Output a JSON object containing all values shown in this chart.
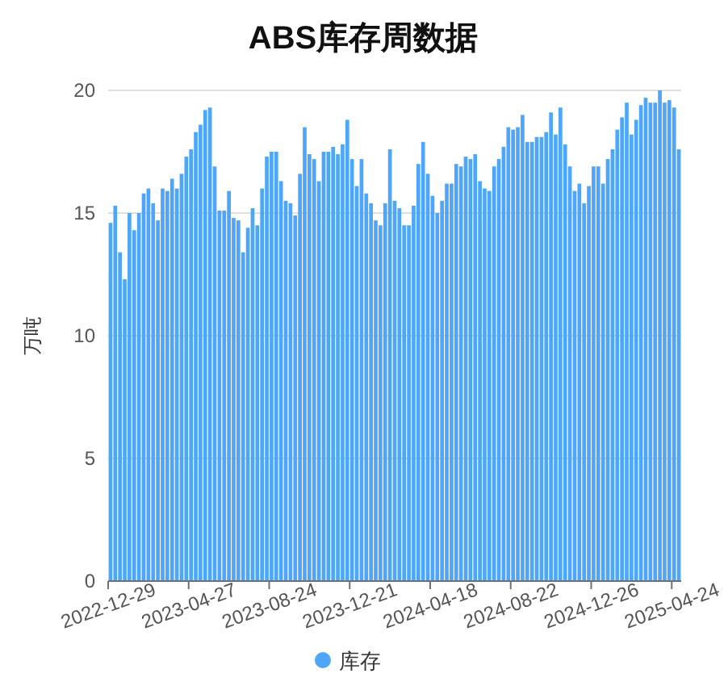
{
  "chart_data": {
    "type": "bar",
    "title": "ABS库存周数据",
    "ylabel": "万吨",
    "categories": [
      "2022-12-29",
      null,
      null,
      null,
      null,
      null,
      null,
      null,
      null,
      null,
      null,
      null,
      null,
      null,
      null,
      null,
      null,
      "2023-04-27",
      null,
      null,
      null,
      null,
      null,
      null,
      null,
      null,
      null,
      null,
      null,
      null,
      null,
      null,
      null,
      null,
      "2023-08-24",
      null,
      null,
      null,
      null,
      null,
      null,
      null,
      null,
      null,
      null,
      null,
      null,
      null,
      null,
      null,
      null,
      "2023-12-21",
      null,
      null,
      null,
      null,
      null,
      null,
      null,
      null,
      null,
      null,
      null,
      null,
      null,
      null,
      null,
      null,
      "2024-04-18",
      null,
      null,
      null,
      null,
      null,
      null,
      null,
      null,
      null,
      null,
      null,
      null,
      null,
      null,
      null,
      null,
      "2024-08-22",
      null,
      null,
      null,
      null,
      null,
      null,
      null,
      null,
      null,
      null,
      null,
      null,
      null,
      null,
      null,
      null,
      "2024-12-26",
      null,
      null,
      null,
      null,
      null,
      null,
      null,
      null,
      null,
      null,
      null,
      null,
      null,
      null,
      null,
      null,
      "2025-04-24",
      null
    ],
    "series": [
      {
        "name": "库存",
        "color": "#4ea6fb",
        "values": [
          14.6,
          15.3,
          13.4,
          12.3,
          15.0,
          14.3,
          15.0,
          15.8,
          16.0,
          15.4,
          14.7,
          16.0,
          15.9,
          16.4,
          16.0,
          16.6,
          17.3,
          17.6,
          18.3,
          18.6,
          19.2,
          19.3,
          16.9,
          15.1,
          15.1,
          15.9,
          14.8,
          14.7,
          13.4,
          14.4,
          15.2,
          14.5,
          16.0,
          17.3,
          17.5,
          17.5,
          16.3,
          15.5,
          15.4,
          14.9,
          16.6,
          18.5,
          17.4,
          17.2,
          16.3,
          17.5,
          17.5,
          17.7,
          17.4,
          17.8,
          18.8,
          17.2,
          16.1,
          17.2,
          15.8,
          15.4,
          14.7,
          14.5,
          15.4,
          17.6,
          15.5,
          15.2,
          14.5,
          14.5,
          15.3,
          17.0,
          17.9,
          16.6,
          15.7,
          15.0,
          15.5,
          16.2,
          16.2,
          17.0,
          16.9,
          17.3,
          17.2,
          17.4,
          16.3,
          16.0,
          15.9,
          16.9,
          17.2,
          17.7,
          18.5,
          18.4,
          18.5,
          19.0,
          17.9,
          17.9,
          18.1,
          18.1,
          18.3,
          19.1,
          18.2,
          19.3,
          17.8,
          16.9,
          15.9,
          16.2,
          15.4,
          16.1,
          16.9,
          16.9,
          16.2,
          17.2,
          17.6,
          18.4,
          18.9,
          19.5,
          18.2,
          18.8,
          19.4,
          19.7,
          19.5,
          19.5,
          20.0,
          19.5,
          19.6,
          19.3,
          17.6
        ]
      }
    ],
    "ylim": [
      0,
      20
    ],
    "yticks": [
      0,
      5,
      10,
      15,
      20
    ],
    "grid": "y",
    "legend": "bottom"
  }
}
